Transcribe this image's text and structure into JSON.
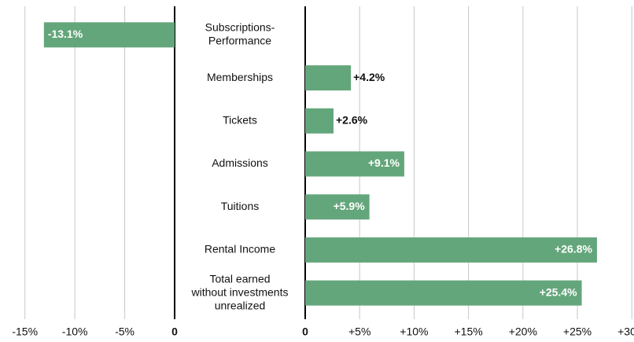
{
  "chart_data": {
    "type": "bar",
    "orientation": "horizontal",
    "color": "#64a67b",
    "categories": [
      [
        "Subscriptions-",
        "Performance"
      ],
      [
        "Memberships"
      ],
      [
        "Tickets"
      ],
      [
        "Admissions"
      ],
      [
        "Tuitions"
      ],
      [
        "Rental Income"
      ],
      [
        "Total earned",
        "without investments",
        "unrealized"
      ]
    ],
    "values": [
      -13.1,
      4.2,
      2.6,
      9.1,
      5.9,
      26.8,
      25.4
    ],
    "value_labels": [
      "-13.1%",
      "+4.2%",
      "+2.6%",
      "+9.1%",
      "+5.9%",
      "+26.8%",
      "+25.4%"
    ],
    "xlim": [
      -17.5,
      0
    ],
    "xticks": [
      {
        "value": -15,
        "label": "-15%"
      },
      {
        "value": -10,
        "label": "-10%"
      },
      {
        "value": -5,
        "label": "-5%"
      },
      0
    ],
    "x2lim": [
      0,
      30.2
    ],
    "x2ticks": [
      0,
      {
        "value": 5,
        "label": "+5%"
      },
      {
        "value": 10,
        "label": "+10%"
      },
      {
        "value": 15,
        "label": "+15%"
      },
      {
        "value": 20,
        "label": "+20%"
      },
      {
        "value": 25,
        "label": "+25%"
      },
      {
        "value": 30,
        "label": "+30%"
      }
    ],
    "grid": true
  }
}
